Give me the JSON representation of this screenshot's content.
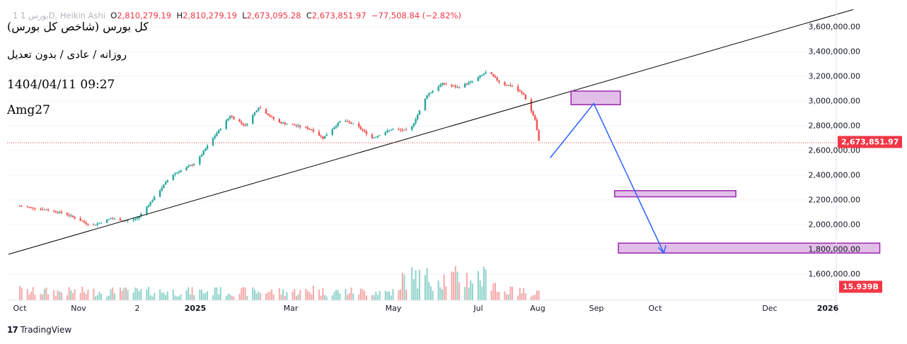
{
  "header": {
    "symbol_prefix": "1 بورس",
    "symbol_suffix": "1D, Heikin Ashi",
    "open_label": "O",
    "open_value": "2,810,279.19",
    "high_label": "H",
    "high_value": "2,810,279.19",
    "low_label": "L",
    "low_value": "2,673,095.28",
    "close_label": "C",
    "close_value": "2,673,851.97",
    "change_value": "−77,508.84 (−2.82%)"
  },
  "notes": {
    "title": "(کل بورس (شاخص کل بورس",
    "mode": "روزانه / عادی / بدون تعدیل",
    "datetime": "1404/04/11 09:27",
    "author": "Amg27"
  },
  "price_axis": {
    "labels": [
      "3,600,000.00",
      "3,400,000.00",
      "3,200,000.00",
      "3,000,000.00",
      "2,800,000.00",
      "2,600,000.00",
      "2,400,000.00",
      "2,200,000.00",
      "2,000,000.00",
      "1,800,000.00",
      "1,600,000.00"
    ],
    "last_price": "2,673,851.97",
    "volume": "15.939B"
  },
  "time_axis": {
    "labels": [
      "Oct",
      "Nov",
      "2",
      "2025",
      "Mar",
      "May",
      "Jul",
      "Aug",
      "Sep",
      "Oct",
      "Dec",
      "2026"
    ],
    "bold": [
      "2025",
      "2026"
    ]
  },
  "branding": {
    "name": "TradingView"
  },
  "colors": {
    "up": "#26a69a",
    "down": "#ef5350",
    "line": "#000000",
    "projection": "#2962ff",
    "zone_fill": "#e1bee7",
    "zone_stroke": "#9c27b0"
  },
  "chart_data": {
    "type": "candlestick",
    "candle_style": "Heikin Ashi",
    "interval": "1D",
    "ylim": [
      1500000,
      3750000
    ],
    "x_range": [
      "2024-10-01",
      "2026-01-05"
    ],
    "series_close": [
      [
        "2024-10-01",
        2150000
      ],
      [
        "2024-10-15",
        2120000
      ],
      [
        "2024-10-25",
        2090000
      ],
      [
        "2024-11-08",
        1990000
      ],
      [
        "2024-11-18",
        2050000
      ],
      [
        "2024-11-26",
        2030000
      ],
      [
        "2024-12-02",
        2050000
      ],
      [
        "2024-12-10",
        2200000
      ],
      [
        "2024-12-20",
        2400000
      ],
      [
        "2025-01-02",
        2500000
      ],
      [
        "2025-01-10",
        2680000
      ],
      [
        "2025-01-20",
        2880000
      ],
      [
        "2025-01-28",
        2800000
      ],
      [
        "2025-02-04",
        2950000
      ],
      [
        "2025-02-14",
        2830000
      ],
      [
        "2025-02-24",
        2800000
      ],
      [
        "2025-03-04",
        2770000
      ],
      [
        "2025-03-10",
        2700000
      ],
      [
        "2025-03-20",
        2850000
      ],
      [
        "2025-03-28",
        2800000
      ],
      [
        "2025-04-05",
        2700000
      ],
      [
        "2025-04-15",
        2770000
      ],
      [
        "2025-04-25",
        2760000
      ],
      [
        "2025-05-04",
        3050000
      ],
      [
        "2025-05-12",
        3140000
      ],
      [
        "2025-05-20",
        3110000
      ],
      [
        "2025-05-28",
        3160000
      ],
      [
        "2025-06-05",
        3240000
      ],
      [
        "2025-06-12",
        3140000
      ],
      [
        "2025-06-18",
        3120000
      ],
      [
        "2025-06-24",
        3050000
      ],
      [
        "2025-06-30",
        2850000
      ],
      [
        "2025-07-02",
        2673852
      ]
    ],
    "trendline": [
      [
        "2024-09-25",
        1760000
      ],
      [
        "2025-12-15",
        3740000
      ]
    ],
    "projection_path": [
      [
        "2025-07-08",
        2540000
      ],
      [
        "2025-07-31",
        2980000
      ],
      [
        "2025-09-06",
        1770000
      ]
    ],
    "zones": [
      {
        "from": "2025-07-19",
        "to": "2025-08-14",
        "low": 2970000,
        "high": 3080000
      },
      {
        "from": "2025-08-11",
        "to": "2025-10-14",
        "low": 2225000,
        "high": 2275000
      },
      {
        "from": "2025-08-13",
        "to": "2025-12-29",
        "low": 1770000,
        "high": 1850000
      }
    ],
    "last_price": 2673851.97,
    "last_volume": "15.939B"
  }
}
